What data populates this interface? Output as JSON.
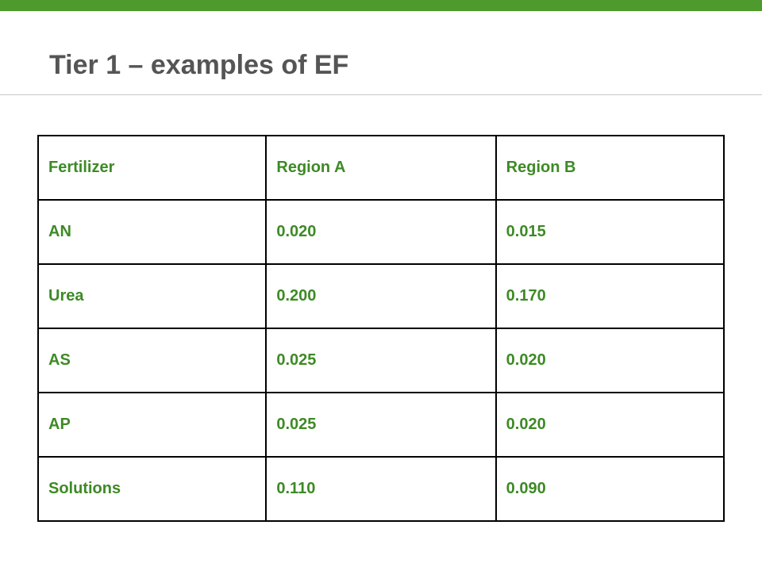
{
  "header": {
    "title": "Tier 1 – examples of EF"
  },
  "table": {
    "columns": [
      "Fertilizer",
      "Region A",
      "Region B"
    ],
    "rows": [
      [
        "AN",
        "0.020",
        "0.015"
      ],
      [
        "Urea",
        "0.200",
        "0.170"
      ],
      [
        "AS",
        "0.025",
        "0.020"
      ],
      [
        "AP",
        "0.025",
        "0.020"
      ],
      [
        "Solutions",
        "0.110",
        "0.090"
      ]
    ]
  }
}
